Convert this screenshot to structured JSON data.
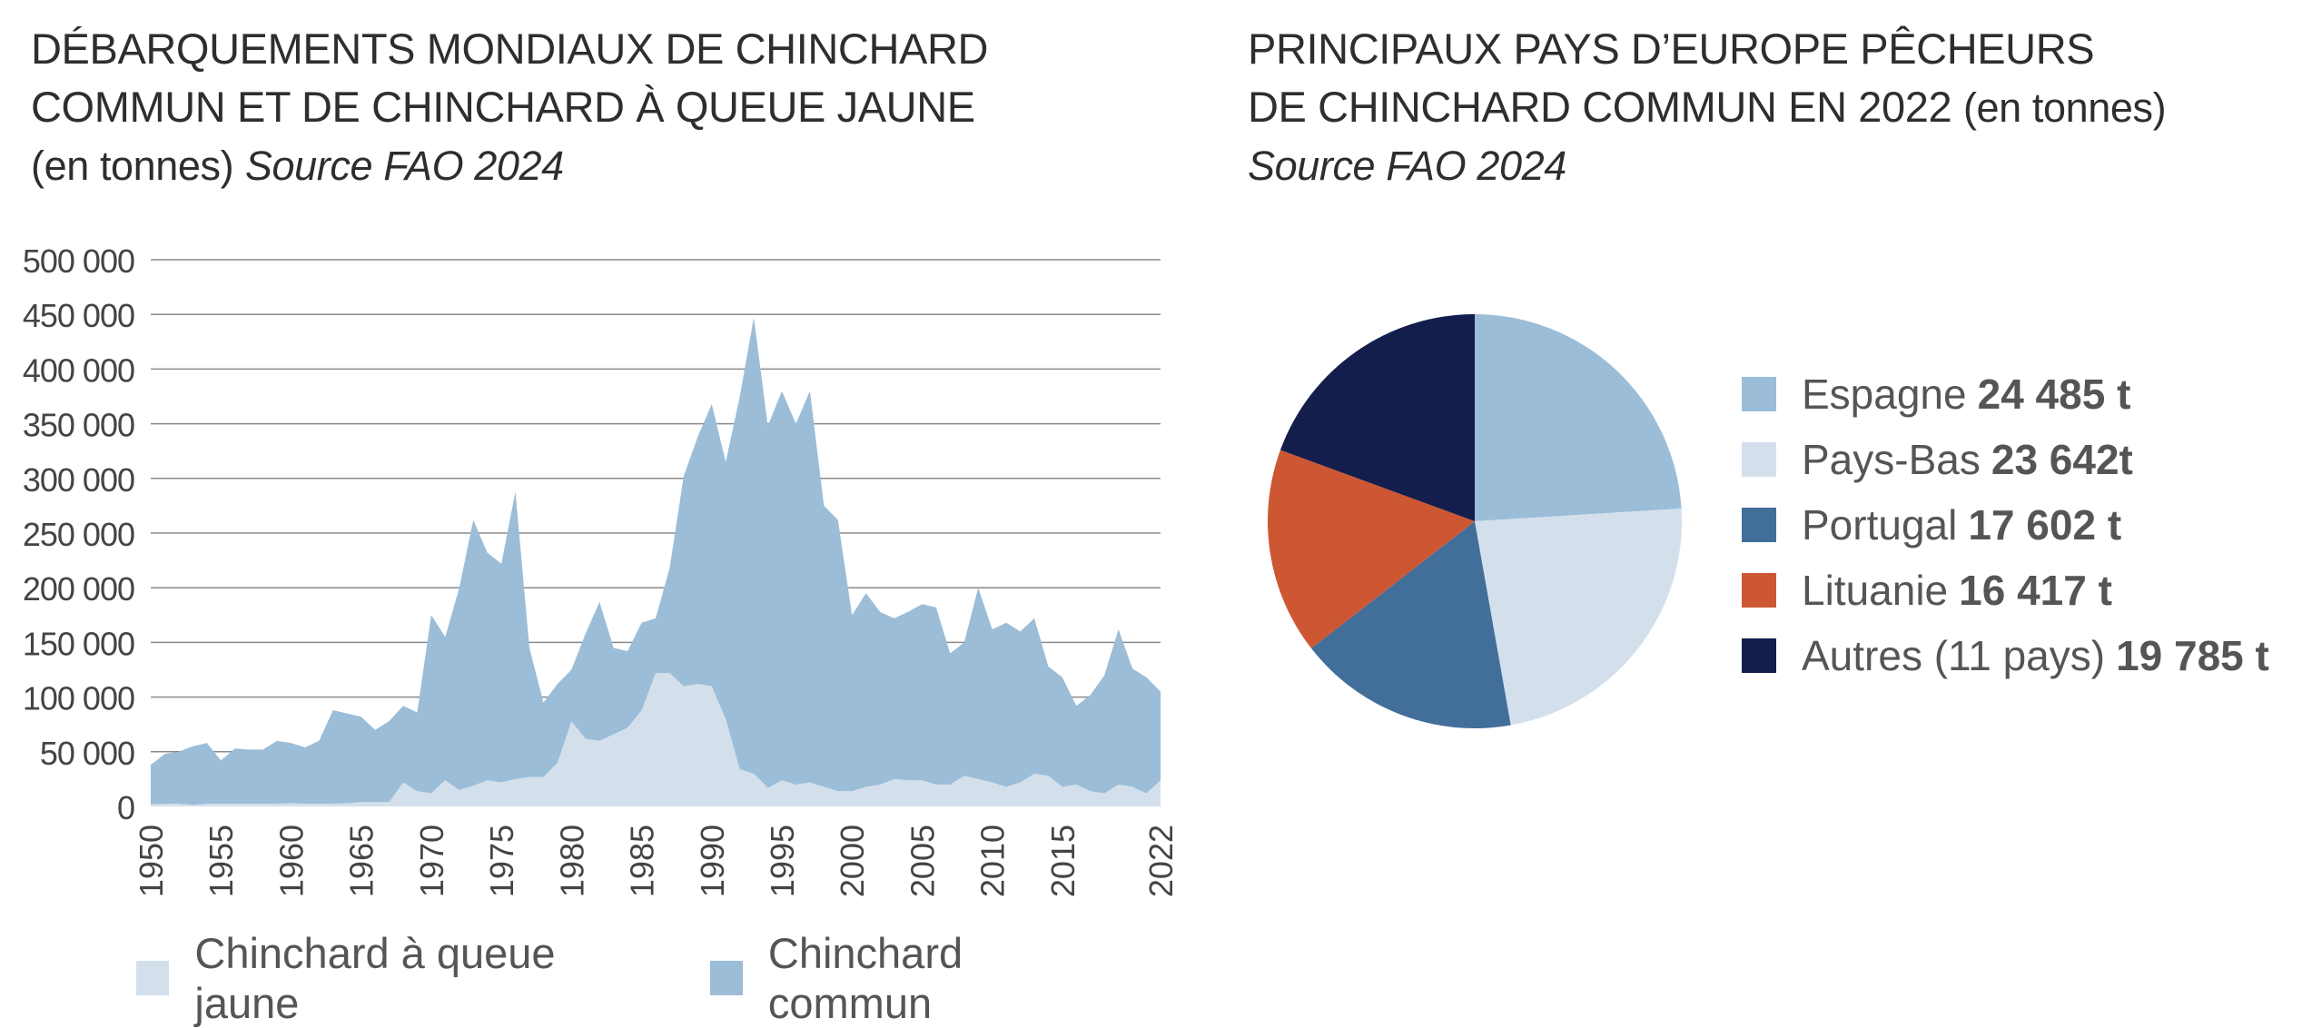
{
  "left": {
    "title_line1": "DÉBARQUEMENTS MONDIAUX DE CHINCHARD",
    "title_line2": "COMMUN ET DE CHINCHARD À QUEUE JAUNE",
    "title_unit": "(en tonnes)",
    "title_source": "Source FAO 2024"
  },
  "right": {
    "title_line1": "PRINCIPAUX PAYS D’EUROPE PÊCHEURS",
    "title_line2": "DE CHINCHARD COMMUN EN 2022",
    "title_unit": "(en tonnes)",
    "title_source": "Source FAO 2024"
  },
  "colors": {
    "chinchard_commun": "#9bbdd8",
    "queue_jaune": "#d3e0ec",
    "espagne": "#9bbdd8",
    "pays_bas": "#d3e0ec",
    "portugal": "#426e9a",
    "lituanie": "#cd5733",
    "autres": "#141e4c",
    "grid": "#8a8a8a"
  },
  "chart_data": [
    {
      "type": "area",
      "stacked": false,
      "ylim": [
        0,
        500000
      ],
      "y_ticks": [
        0,
        50000,
        100000,
        150000,
        200000,
        250000,
        300000,
        350000,
        400000,
        450000,
        500000
      ],
      "y_tick_labels": [
        "0",
        "50 000",
        "100 000",
        "150 000",
        "200 000",
        "250 000",
        "300 000",
        "350 000",
        "400 000",
        "450 000",
        "500 000"
      ],
      "x_ticks": [
        1950,
        1955,
        1960,
        1965,
        1970,
        1975,
        1980,
        1985,
        1990,
        1995,
        2000,
        2005,
        2010,
        2015,
        2022
      ],
      "xlim": [
        1950,
        2022
      ],
      "grid": "horizontal",
      "legend_position": "bottom",
      "x": [
        1950,
        1951,
        1952,
        1953,
        1954,
        1955,
        1956,
        1957,
        1958,
        1959,
        1960,
        1961,
        1962,
        1963,
        1964,
        1965,
        1966,
        1967,
        1968,
        1969,
        1970,
        1971,
        1972,
        1973,
        1974,
        1975,
        1976,
        1977,
        1978,
        1979,
        1980,
        1981,
        1982,
        1983,
        1984,
        1985,
        1986,
        1987,
        1988,
        1989,
        1990,
        1991,
        1992,
        1993,
        1994,
        1995,
        1996,
        1997,
        1998,
        1999,
        2000,
        2001,
        2002,
        2003,
        2004,
        2005,
        2006,
        2007,
        2008,
        2009,
        2010,
        2011,
        2012,
        2013,
        2014,
        2015,
        2016,
        2017,
        2018,
        2019,
        2020,
        2021,
        2022
      ],
      "series": [
        {
          "name": "Chinchard commun",
          "color_key": "chinchard_commun",
          "values": [
            38000,
            48000,
            50000,
            55000,
            58000,
            42000,
            53000,
            52000,
            52000,
            60000,
            58000,
            54000,
            60000,
            88000,
            85000,
            82000,
            70000,
            78000,
            92000,
            86000,
            175000,
            155000,
            200000,
            262000,
            232000,
            222000,
            288000,
            145000,
            95000,
            112000,
            125000,
            158000,
            187000,
            145000,
            142000,
            168000,
            172000,
            218000,
            302000,
            338000,
            368000,
            315000,
            375000,
            447000,
            348000,
            380000,
            350000,
            380000,
            275000,
            262000,
            175000,
            195000,
            178000,
            172000,
            178000,
            185000,
            182000,
            140000,
            150000,
            200000,
            162000,
            168000,
            160000,
            172000,
            128000,
            118000,
            92000,
            102000,
            120000,
            162000,
            126000,
            118000,
            105000
          ]
        },
        {
          "name": "Chinchard à queue jaune",
          "color_key": "queue_jaune",
          "values": [
            2000,
            2500,
            2500,
            1500,
            2500,
            2500,
            2500,
            2500,
            2500,
            2500,
            3000,
            2500,
            2500,
            2500,
            3000,
            4000,
            4000,
            4000,
            22000,
            14000,
            12000,
            24000,
            15000,
            19000,
            24000,
            22000,
            25000,
            27000,
            27000,
            40000,
            78000,
            62000,
            60000,
            66000,
            72000,
            88000,
            122000,
            122000,
            110000,
            112000,
            110000,
            80000,
            34000,
            30000,
            17000,
            24000,
            20000,
            22000,
            18000,
            14000,
            14000,
            18000,
            20000,
            25000,
            24000,
            24000,
            20000,
            20000,
            28000,
            25000,
            22000,
            18000,
            22000,
            30000,
            28000,
            18000,
            20000,
            14000,
            12000,
            20000,
            18000,
            12000,
            24000
          ]
        }
      ],
      "x_values_labels": [
        "1950",
        "1955",
        "1960",
        "1965",
        "1970",
        "1975",
        "1980",
        "1985",
        "1990",
        "1995",
        "2000",
        "2005",
        "2010",
        "2015",
        "2022"
      ]
    },
    {
      "type": "pie",
      "legend_position": "right",
      "slices": [
        {
          "label": "Espagne",
          "value": 24485,
          "value_label": "24 485 t",
          "color_key": "espagne"
        },
        {
          "label": "Pays-Bas",
          "value": 23642,
          "value_label": "23 642t",
          "color_key": "pays_bas"
        },
        {
          "label": "Portugal",
          "value": 17602,
          "value_label": "17 602 t",
          "color_key": "portugal"
        },
        {
          "label": "Lituanie",
          "value": 16417,
          "value_label": "16 417 t",
          "color_key": "lituanie"
        },
        {
          "label": "Autres (11 pays)",
          "value": 19785,
          "value_label": "19 785 t",
          "color_key": "autres"
        }
      ]
    }
  ]
}
